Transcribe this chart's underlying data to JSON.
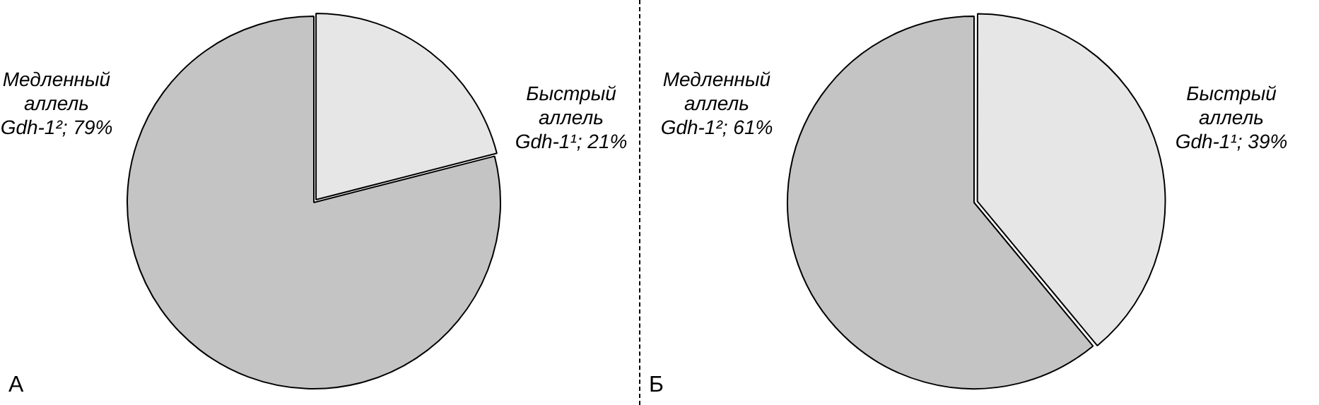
{
  "chart_data": [
    {
      "type": "pie",
      "categories": [
        "Быстрый аллель Gdh-1¹",
        "Медленный аллель Gdh-1²"
      ],
      "values": [
        21,
        79
      ],
      "value_labels": [
        "21%",
        "79%"
      ],
      "colors": [
        "#e6e6e6",
        "#c4c4c4"
      ],
      "annotations": [
        "А"
      ]
    },
    {
      "type": "pie",
      "categories": [
        "Быстрый аллель Gdh-1¹",
        "Медленный аллель Gdh-1²"
      ],
      "values": [
        39,
        61
      ],
      "value_labels": [
        "39%",
        "61%"
      ],
      "colors": [
        "#e6e6e6",
        "#c4c4c4"
      ],
      "annotations": [
        "Б"
      ]
    }
  ]
}
